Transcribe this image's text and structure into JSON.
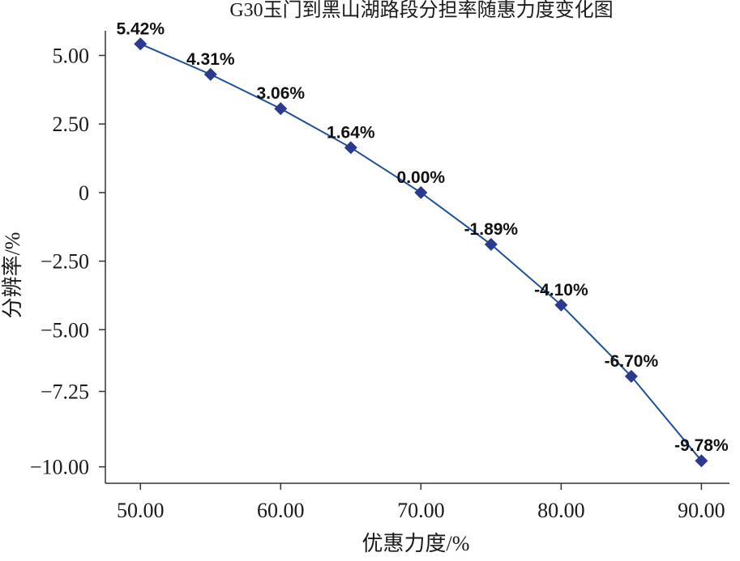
{
  "chart_data": {
    "type": "line",
    "title": "G30玉门到黑山湖路段分担率随惠力度变化图",
    "xlabel": "优惠力度/%",
    "ylabel": "分辨率/%",
    "xlim": [
      47.5,
      92
    ],
    "ylim": [
      -10.6,
      5.9
    ],
    "x_ticks": [
      50,
      60,
      70,
      80,
      90
    ],
    "x_tick_labels": [
      "50.00",
      "60.00",
      "70.00",
      "80.00",
      "90.00"
    ],
    "y_ticks": [
      5,
      2.5,
      0,
      -2.5,
      -5,
      -7.25,
      -10
    ],
    "y_tick_labels": [
      "5.00",
      "2.50",
      "0",
      "−2.50",
      "−5.00",
      "−7.25",
      "−10.00"
    ],
    "grid": false,
    "legend": "none",
    "marker": "diamond",
    "series": [
      {
        "x": [
          50,
          55,
          60,
          65,
          70,
          75,
          80,
          85,
          90
        ],
        "values": [
          5.42,
          4.31,
          3.06,
          1.64,
          0.0,
          -1.89,
          -4.1,
          -6.7,
          -9.78
        ],
        "labels": [
          "5.42%",
          "4.31%",
          "3.06%",
          "1.64%",
          "0.00%",
          "-1.89%",
          "-4.10%",
          "-6.70%",
          "-9.78%"
        ],
        "color": "#1f4e9a",
        "marker_color": "#2b3a8f"
      }
    ]
  }
}
